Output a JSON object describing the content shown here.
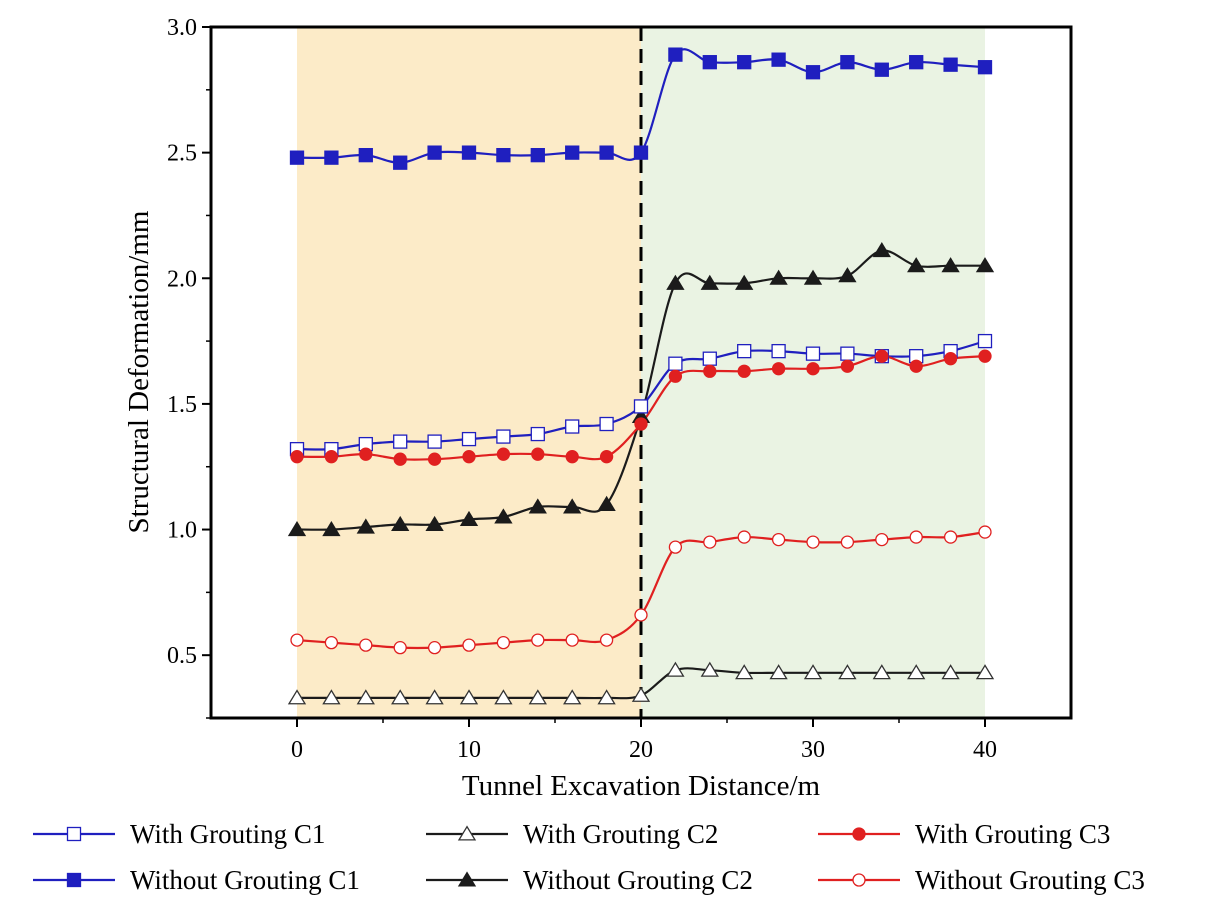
{
  "chart_data": {
    "type": "line",
    "title": "",
    "xlabel": "Tunnel Excavation Distance/m",
    "ylabel": "Structural Deformation/mm",
    "xlim": [
      -5,
      45
    ],
    "ylim": [
      0.25,
      3.0
    ],
    "xticks": [
      0,
      10,
      20,
      30,
      40
    ],
    "yticks": [
      0.5,
      1.0,
      1.5,
      2.0,
      2.5,
      3.0
    ],
    "xtick_labels": [
      "0",
      "10",
      "20",
      "30",
      "40"
    ],
    "ytick_labels": [
      "0.5",
      "1.0",
      "1.5",
      "2.0",
      "2.5",
      "3.0"
    ],
    "grid": false,
    "legend_position": "bottom",
    "regions": [
      {
        "x_start": 0,
        "x_end": 20,
        "color": "#fcebc8"
      },
      {
        "x_start": 20,
        "x_end": 40,
        "color": "#eaf3e3"
      }
    ],
    "divider_x": 20,
    "x": [
      0,
      2,
      4,
      6,
      8,
      10,
      12,
      14,
      16,
      18,
      20,
      22,
      24,
      26,
      28,
      30,
      32,
      34,
      36,
      38,
      40
    ],
    "series": [
      {
        "name": "Without Grouting C1",
        "color": "#1f1fbf",
        "marker": "square",
        "filled": true,
        "values": [
          2.48,
          2.48,
          2.49,
          2.46,
          2.5,
          2.5,
          2.49,
          2.49,
          2.5,
          2.5,
          2.5,
          2.89,
          2.86,
          2.86,
          2.87,
          2.82,
          2.86,
          2.83,
          2.86,
          2.85,
          2.84
        ]
      },
      {
        "name": "Without Grouting C2",
        "color": "#1b1b1b",
        "marker": "triangle",
        "filled": true,
        "values": [
          1.0,
          1.0,
          1.01,
          1.02,
          1.02,
          1.04,
          1.05,
          1.09,
          1.09,
          1.1,
          1.45,
          1.98,
          1.98,
          1.98,
          2.0,
          2.0,
          2.01,
          2.11,
          2.05,
          2.05,
          2.05
        ]
      },
      {
        "name": "With Grouting C1",
        "color": "#1f1fbf",
        "marker": "square",
        "filled": false,
        "values": [
          1.32,
          1.32,
          1.34,
          1.35,
          1.35,
          1.36,
          1.37,
          1.38,
          1.41,
          1.42,
          1.49,
          1.66,
          1.68,
          1.71,
          1.71,
          1.7,
          1.7,
          1.69,
          1.69,
          1.71,
          1.75
        ]
      },
      {
        "name": "With Grouting C3",
        "color": "#e02020",
        "marker": "circle",
        "filled": true,
        "values": [
          1.29,
          1.29,
          1.3,
          1.28,
          1.28,
          1.29,
          1.3,
          1.3,
          1.29,
          1.29,
          1.42,
          1.61,
          1.63,
          1.63,
          1.64,
          1.64,
          1.65,
          1.69,
          1.65,
          1.68,
          1.69
        ]
      },
      {
        "name": "Without Grouting C3",
        "color": "#e02020",
        "marker": "circle",
        "filled": false,
        "values": [
          0.56,
          0.55,
          0.54,
          0.53,
          0.53,
          0.54,
          0.55,
          0.56,
          0.56,
          0.56,
          0.66,
          0.93,
          0.95,
          0.97,
          0.96,
          0.95,
          0.95,
          0.96,
          0.97,
          0.97,
          0.99
        ]
      },
      {
        "name": "With Grouting C2",
        "color": "#1b1b1b",
        "marker": "triangle",
        "filled": false,
        "values": [
          0.33,
          0.33,
          0.33,
          0.33,
          0.33,
          0.33,
          0.33,
          0.33,
          0.33,
          0.33,
          0.34,
          0.44,
          0.44,
          0.43,
          0.43,
          0.43,
          0.43,
          0.43,
          0.43,
          0.43,
          0.43
        ]
      }
    ],
    "legend_order": [
      "With Grouting C1",
      "With Grouting C2",
      "With Grouting C3",
      "Without Grouting C1",
      "Without Grouting C2",
      "Without Grouting C3"
    ]
  }
}
